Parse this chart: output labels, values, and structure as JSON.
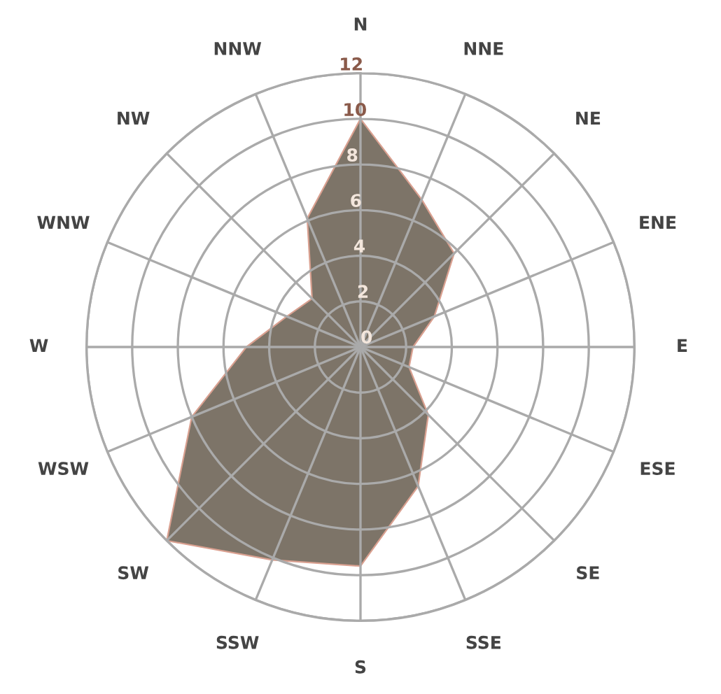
{
  "chart_data": {
    "type": "radar",
    "categories": [
      "N",
      "NNE",
      "NE",
      "ENE",
      "E",
      "ESE",
      "SE",
      "SSE",
      "S",
      "SSW",
      "SW",
      "WSW",
      "W",
      "WNW",
      "NW",
      "NNW"
    ],
    "series": [
      {
        "color": "#7d7468",
        "values": [
          10,
          7,
          5.8,
          3.5,
          2.3,
          2.3,
          4.2,
          6.6,
          9.6,
          10.1,
          12,
          8,
          5,
          3.5,
          3,
          6.1
        ]
      }
    ],
    "ylim": [
      0,
      12
    ],
    "yticks": [
      0,
      2,
      4,
      6,
      8,
      10,
      12
    ],
    "grid": true
  }
}
